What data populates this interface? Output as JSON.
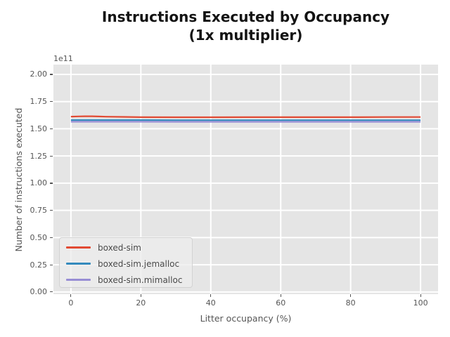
{
  "title": {
    "line1": "Instructions Executed by Occupancy",
    "line2": "(1x multiplier)"
  },
  "chart_data": {
    "type": "line",
    "title": "Instructions Executed by Occupancy (1x multiplier)",
    "xlabel": "Litter occupancy (%)",
    "ylabel": "Number of instructions executed",
    "offset_text": "1e11",
    "y_unit": "1e11",
    "grid": true,
    "legend_position": "lower left",
    "xticks": [
      0,
      20,
      40,
      60,
      80,
      100
    ],
    "yticks": [
      "0.00",
      "0.25",
      "0.50",
      "0.75",
      "1.00",
      "1.25",
      "1.50",
      "1.75",
      "2.00"
    ],
    "xlim": [
      -5,
      105
    ],
    "ylim_e11": [
      -0.02,
      2.09
    ],
    "x": [
      0,
      2,
      4,
      6,
      8,
      10,
      15,
      20,
      30,
      40,
      50,
      60,
      70,
      80,
      90,
      100
    ],
    "series": [
      {
        "name": "boxed-sim",
        "color": "#E24A33",
        "values_e11": [
          1.612,
          1.614,
          1.615,
          1.615,
          1.613,
          1.611,
          1.609,
          1.607,
          1.606,
          1.606,
          1.607,
          1.607,
          1.607,
          1.607,
          1.608,
          1.608
        ]
      },
      {
        "name": "boxed-sim.jemalloc",
        "color": "#348ABD",
        "values_e11": [
          1.58,
          1.58,
          1.58,
          1.58,
          1.58,
          1.58,
          1.58,
          1.58,
          1.579,
          1.579,
          1.579,
          1.579,
          1.579,
          1.579,
          1.579,
          1.579
        ]
      },
      {
        "name": "boxed-sim.mimalloc",
        "color": "#988ED5",
        "values_e11": [
          1.565,
          1.565,
          1.565,
          1.565,
          1.565,
          1.565,
          1.565,
          1.565,
          1.564,
          1.564,
          1.564,
          1.564,
          1.564,
          1.564,
          1.564,
          1.564
        ]
      }
    ]
  },
  "colors": {
    "figure_bg": "#FFFFFF",
    "axes_bg": "#E5E5E5",
    "grid": "#FFFFFF",
    "tick_text": "#555555",
    "label_text": "#555555",
    "title_text": "#131313",
    "legend_border": "#D2D2D2"
  }
}
